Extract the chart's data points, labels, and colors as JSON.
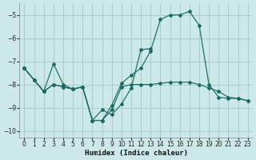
{
  "xlabel": "Humidex (Indice chaleur)",
  "background_color": "#cce8e8",
  "grid_color": "#aacccc",
  "line_color": "#1a6b5e",
  "xlim": [
    -0.5,
    23.5
  ],
  "ylim": [
    -10.3,
    -4.5
  ],
  "yticks": [
    -10,
    -9,
    -8,
    -7,
    -6,
    -5
  ],
  "xticks": [
    0,
    1,
    2,
    3,
    4,
    5,
    6,
    7,
    8,
    9,
    10,
    11,
    12,
    13,
    14,
    15,
    16,
    17,
    18,
    19,
    20,
    21,
    22,
    23
  ],
  "line1_x": [
    0,
    1,
    2,
    3,
    4,
    5,
    6,
    7,
    8,
    9,
    10,
    11,
    12,
    13,
    14,
    15,
    16,
    17,
    18,
    19,
    20,
    21,
    22,
    23
  ],
  "line1_y": [
    -7.3,
    -7.8,
    -8.3,
    -8.0,
    -8.1,
    -8.2,
    -8.1,
    -9.55,
    -9.55,
    -8.9,
    -7.95,
    -7.6,
    -7.3,
    -6.55,
    -5.2,
    -5.0,
    -5.0,
    -4.85,
    -5.45,
    -8.0,
    -8.55,
    -8.6,
    -8.6,
    -8.7
  ],
  "line2_x": [
    0,
    1,
    2,
    3,
    4,
    5,
    6,
    7,
    8,
    9,
    10,
    11,
    12,
    13,
    14,
    15,
    16,
    17,
    18,
    19,
    20,
    21,
    22,
    23
  ],
  "line2_y": [
    -7.3,
    -7.8,
    -8.3,
    -8.0,
    -8.1,
    -8.2,
    -8.1,
    -9.55,
    -9.55,
    -9.1,
    -8.1,
    -8.0,
    -8.0,
    -8.0,
    -7.95,
    -7.9,
    -7.9,
    -7.9,
    -8.0,
    -8.15,
    -8.3,
    -8.55,
    -8.6,
    -8.7
  ],
  "line3_x": [
    0,
    1,
    2,
    3,
    4,
    5,
    6,
    7,
    8,
    9,
    10,
    11,
    12,
    13
  ],
  "line3_y": [
    -7.3,
    -7.8,
    -8.3,
    -7.1,
    -8.0,
    -8.2,
    -8.1,
    -9.55,
    -9.1,
    -9.3,
    -8.85,
    -8.15,
    -6.5,
    -6.45
  ]
}
